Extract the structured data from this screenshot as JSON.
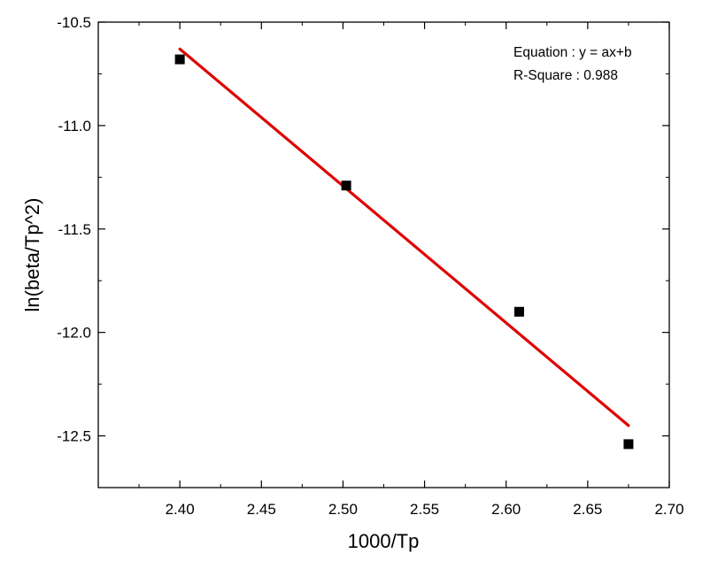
{
  "chart_data": {
    "type": "scatter",
    "xlabel": "1000/Tp",
    "ylabel": "ln(beta/Tp^2)",
    "xlim": [
      2.35,
      2.7
    ],
    "ylim": [
      -12.75,
      -10.5
    ],
    "x_ticks": [
      2.4,
      2.45,
      2.5,
      2.55,
      2.6,
      2.65,
      2.7
    ],
    "x_tick_labels": [
      "2.40",
      "2.45",
      "2.50",
      "2.55",
      "2.60",
      "2.65",
      "2.70"
    ],
    "y_ticks": [
      -10.5,
      -11.0,
      -11.5,
      -12.0,
      -12.5
    ],
    "y_tick_labels": [
      "-10.5",
      "-11.0",
      "-11.5",
      "-12.0",
      "-12.5"
    ],
    "grid": false,
    "points": {
      "x": [
        2.4,
        2.502,
        2.608,
        2.675
      ],
      "y": [
        -10.68,
        -11.29,
        -11.9,
        -12.54
      ],
      "marker": "square",
      "color": "#000000"
    },
    "fit_line": {
      "x": [
        2.4,
        2.675
      ],
      "y": [
        -10.63,
        -12.45
      ],
      "color": "#e00000"
    },
    "annotations": [
      "Equation : y = ax+b",
      "R-Square : 0.988"
    ],
    "annotation_position": "top-right"
  }
}
